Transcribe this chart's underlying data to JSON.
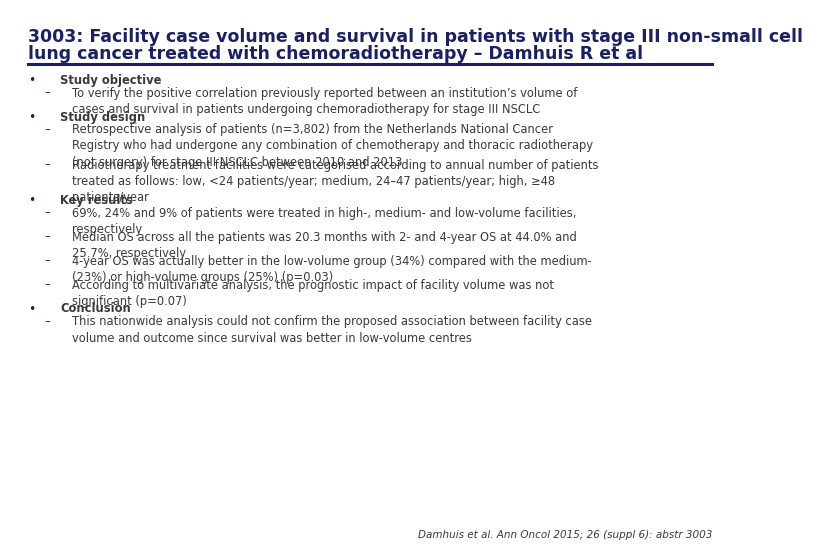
{
  "title_line1": "3003: Facility case volume and survival in patients with stage III non-small cell",
  "title_line2": "lung cancer treated with chemoradiotherapy – Damhuis R et al",
  "title_color": "#1a2060",
  "title_fontsize": 12.5,
  "background_color": "#ffffff",
  "separator_color": "#1a2060",
  "bullet_color": "#1a2060",
  "body_color": "#3a3a3a",
  "body_fontsize": 8.3,
  "citation": "Damhuis et al. Ann Oncol 2015; 26 (suppl 6): abstr 3003",
  "citation_fontsize": 7.5,
  "sections": [
    {
      "heading": "Study objective",
      "items": [
        "To verify the positive correlation previously reported between an institution’s volume of\ncases and survival in patients undergoing chemoradiotherapy for stage III NSCLC"
      ]
    },
    {
      "heading": "Study design",
      "items": [
        "Retrospective analysis of patients (n=3,802) from the Netherlands National Cancer\nRegistry who had undergone any combination of chemotherapy and thoracic radiotherapy\n(not surgery) for stage III NSCLC between 2010 and 2013",
        "Radiotherapy treatment facilities were categorised according to annual number of patients\ntreated as follows: low, <24 patients/year; medium, 24–47 patients/year; high, ≥48\npatients/year"
      ]
    },
    {
      "heading": "Key results",
      "items": [
        "69%, 24% and 9% of patients were treated in high-, medium- and low-volume facilities,\nrespectively",
        "Median OS across all the patients was 20.3 months with 2- and 4-year OS at 44.0% and\n25.7%, respectively",
        "4-year OS was actually better in the low-volume group (34%) compared with the medium-\n(23%) or high-volume groups (25%) (p=0.03)",
        "According to multivariate analysis, the prognostic impact of facility volume was not\nsignificant (p=0.07)"
      ]
    },
    {
      "heading": "Conclusion",
      "items": [
        "This nationwide analysis could not confirm the proposed association between facility case\nvolume and outcome since survival was better in low-volume centres"
      ]
    }
  ]
}
